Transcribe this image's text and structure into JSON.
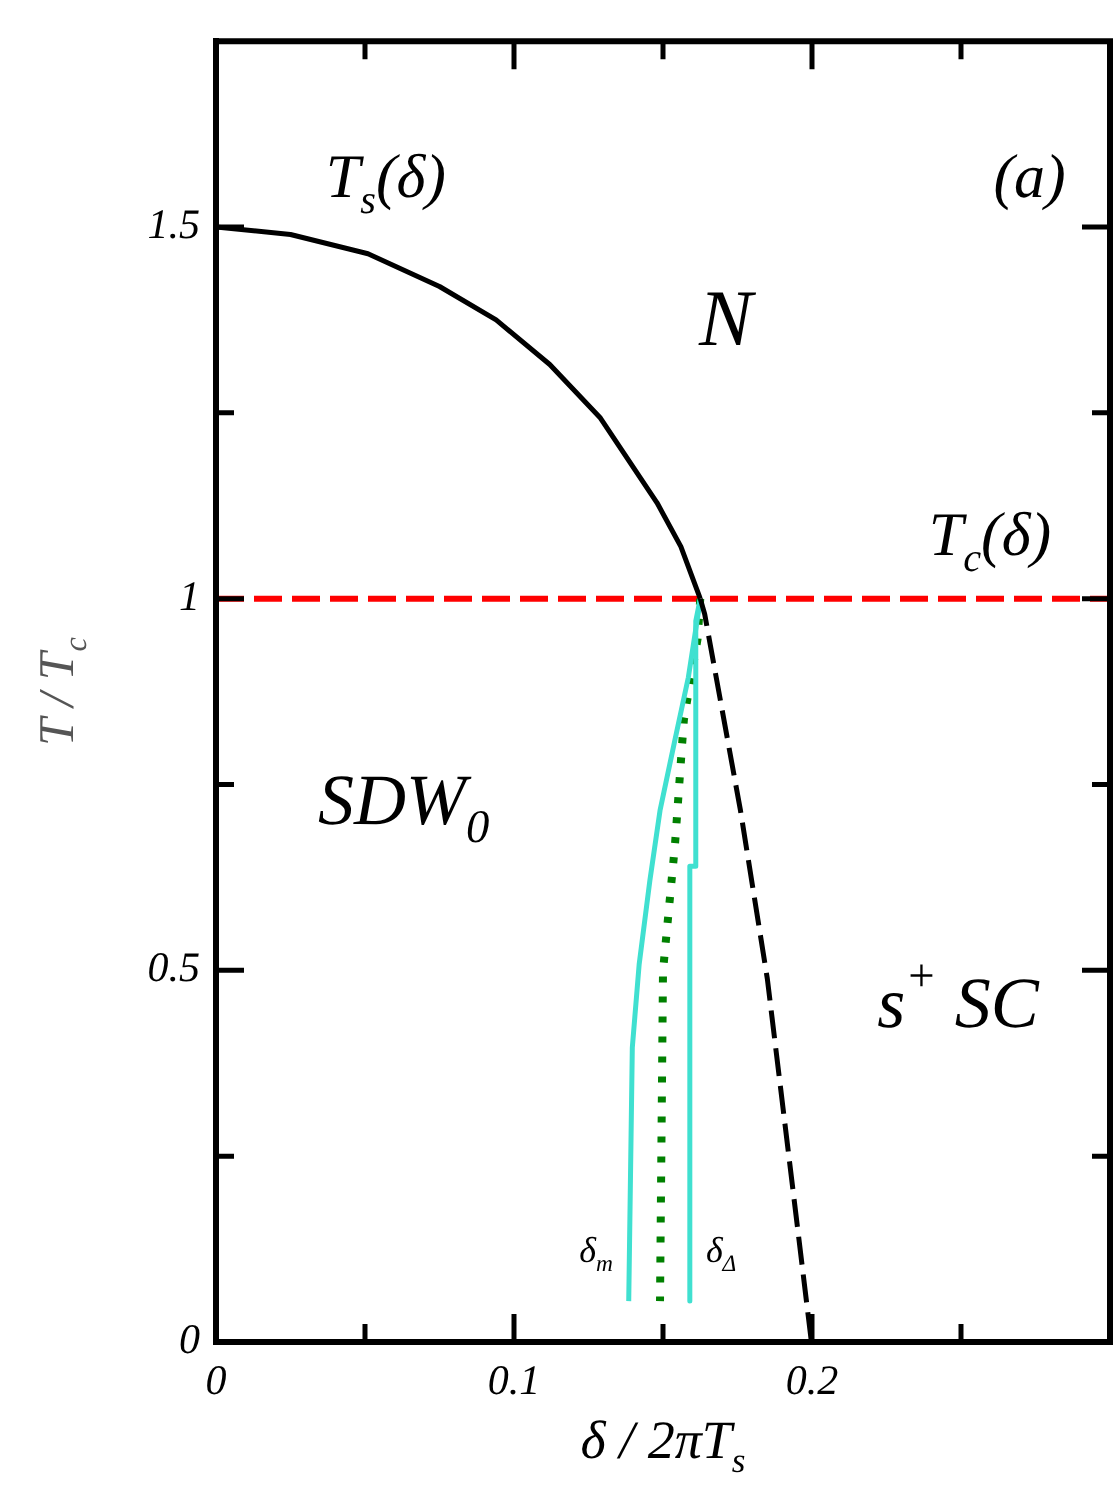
{
  "chart_data": {
    "type": "line",
    "xlabel": "δ / 2πT$_{s}$",
    "ylabel": "T / T$_{c}$",
    "xlim": [
      0,
      0.3
    ],
    "ylim": [
      0,
      1.75
    ],
    "xticks": [
      0,
      {
        "value": 0.05,
        "label": null
      },
      0.1,
      {
        "value": 0.15,
        "label": null
      },
      0.2,
      {
        "value": 0.25,
        "label": null
      }
    ],
    "yticks": [
      0,
      {
        "value": 0.25,
        "label": null
      },
      0.5,
      {
        "value": 0.75,
        "label": null
      },
      1,
      {
        "value": 1.25,
        "label": null
      },
      1.5
    ],
    "grid": false,
    "legend": false,
    "marker": "none",
    "series": [
      {
        "type": "line",
        "color": "#000000",
        "line_style": "solid",
        "x": [
          0,
          0.025,
          0.051,
          0.075,
          0.094,
          0.112,
          0.129,
          0.148,
          0.156,
          0.1625
        ],
        "values": [
          1.5,
          1.49,
          1.464,
          1.42,
          1.375,
          1.315,
          1.243,
          1.129,
          1.07,
          1.0
        ]
      },
      {
        "type": "line",
        "color": "#000000",
        "line_style": "dashed",
        "x": [
          0.1625,
          0.164,
          0.176,
          0.185,
          0.1998
        ],
        "values": [
          1.0,
          0.979,
          0.715,
          0.489,
          0
        ]
      },
      {
        "type": "line",
        "color": "#40e0d0",
        "line_style": "solid",
        "x": [
          0.1625,
          0.1585,
          0.154,
          0.149,
          0.1456,
          0.142,
          0.1397,
          0.1385
        ],
        "values": [
          0.998,
          0.894,
          0.81,
          0.715,
          0.621,
          0.508,
          0.396,
          0.055
        ]
      },
      {
        "type": "line",
        "color": "#40e0d0",
        "line_style": "solid",
        "x": [
          0.1625,
          0.161,
          0.161,
          0.159,
          0.159
        ],
        "values": [
          1.0,
          0.97,
          0.64,
          0.64,
          0.055
        ]
      },
      {
        "type": "line",
        "color": "#008000",
        "line_style": "dotted",
        "x": [
          0.1625,
          0.1616,
          0.157,
          0.154,
          0.15,
          0.149
        ],
        "values": [
          1.0,
          0.946,
          0.837,
          0.668,
          0.499,
          0.055
        ]
      }
    ],
    "ref_lines": [
      {
        "axis": "y",
        "value": 1,
        "label": "T$_{c}$(δ)",
        "color": "#ff0000",
        "line_style": "dashed"
      }
    ],
    "annotations": [
      "T$_{s}$(δ)",
      "N",
      "SDW$_{0}$",
      "s$^{+}$ SC",
      "δ$_{m}$",
      "δ$_{Δ}$",
      "(a)"
    ]
  }
}
